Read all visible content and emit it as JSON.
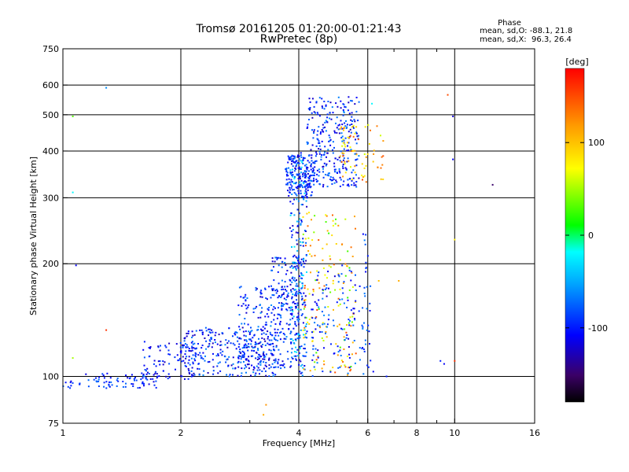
{
  "chart_data": {
    "type": "scatter",
    "title": "Tromsø 20161205 01:20:00-01:21:43",
    "subtitle": "RwPretec (8p)",
    "xlabel": "Frequency [MHz]",
    "ylabel": "Stationary phase Virtual Height [km]",
    "x_scale": "log",
    "y_scale": "log",
    "xlim": [
      1,
      16
    ],
    "ylim": [
      75,
      750
    ],
    "x_ticks": [
      1,
      2,
      4,
      6,
      8,
      10,
      16
    ],
    "x_ticks_minor": [
      3,
      5,
      7,
      9
    ],
    "y_ticks": [
      75,
      100,
      200,
      300,
      400,
      500,
      600,
      750
    ],
    "grid": true,
    "legend": {
      "heading": "Phase",
      "line_o": "mean, sd,O: -88.1, 21.8",
      "line_x": "mean, sd,X:  96.3, 26.4"
    },
    "colorbar": {
      "label": "[deg]",
      "ticks": [
        100,
        0,
        -100
      ],
      "range": [
        -180,
        180
      ]
    },
    "clusters": [
      {
        "f": [
          0.98,
          1.06
        ],
        "h": [
          92,
          98
        ],
        "phase": [
          -120,
          -70
        ],
        "n": 10
      },
      {
        "f": [
          1.1,
          1.75
        ],
        "h": [
          93,
          102
        ],
        "phase": [
          -120,
          -70
        ],
        "n": 70
      },
      {
        "f": [
          1.6,
          2.2
        ],
        "h": [
          98,
          125
        ],
        "phase": [
          -130,
          -70
        ],
        "n": 90
      },
      {
        "f": [
          2.0,
          3.6
        ],
        "h": [
          100,
          135
        ],
        "phase": [
          -130,
          -60
        ],
        "n": 300
      },
      {
        "f": [
          2.8,
          4.0
        ],
        "h": [
          105,
          175
        ],
        "phase": [
          -130,
          -60
        ],
        "n": 260
      },
      {
        "f": [
          3.4,
          4.1
        ],
        "h": [
          150,
          210
        ],
        "phase": [
          -130,
          -60
        ],
        "n": 90
      },
      {
        "f": [
          3.8,
          4.2
        ],
        "h": [
          100,
          400
        ],
        "phase": [
          -130,
          -20
        ],
        "n": 240
      },
      {
        "f": [
          3.7,
          4.4
        ],
        "h": [
          300,
          390
        ],
        "phase": [
          -120,
          -70
        ],
        "n": 160
      },
      {
        "f": [
          4.2,
          5.7
        ],
        "h": [
          320,
          560
        ],
        "phase": [
          -130,
          -60
        ],
        "n": 300
      },
      {
        "f": [
          4.1,
          5.6
        ],
        "h": [
          100,
          280
        ],
        "phase": [
          20,
          150
        ],
        "n": 160
      },
      {
        "f": [
          4.3,
          5.6
        ],
        "h": [
          100,
          200
        ],
        "phase": [
          -120,
          -60
        ],
        "n": 110
      },
      {
        "f": [
          5.1,
          6.6
        ],
        "h": [
          330,
          470
        ],
        "phase": [
          60,
          150
        ],
        "n": 70
      },
      {
        "f": [
          5.7,
          6.1
        ],
        "h": [
          100,
          250
        ],
        "phase": [
          -110,
          -60
        ],
        "n": 40
      }
    ],
    "outliers": [
      {
        "f": 1.29,
        "h": 590,
        "phase": -60
      },
      {
        "f": 1.06,
        "h": 495,
        "phase": 30
      },
      {
        "f": 1.06,
        "h": 310,
        "phase": -20
      },
      {
        "f": 1.08,
        "h": 198,
        "phase": -110
      },
      {
        "f": 1.29,
        "h": 133,
        "phase": 160
      },
      {
        "f": 1.06,
        "h": 112,
        "phase": 50
      },
      {
        "f": 3.3,
        "h": 84,
        "phase": 120
      },
      {
        "f": 3.25,
        "h": 79,
        "phase": 110
      },
      {
        "f": 6.15,
        "h": 535,
        "phase": -20
      },
      {
        "f": 6.4,
        "h": 180,
        "phase": 100
      },
      {
        "f": 7.2,
        "h": 180,
        "phase": 110
      },
      {
        "f": 6.2,
        "h": 103,
        "phase": -110
      },
      {
        "f": 6.7,
        "h": 100,
        "phase": -100
      },
      {
        "f": 9.6,
        "h": 565,
        "phase": 150
      },
      {
        "f": 9.9,
        "h": 495,
        "phase": -120
      },
      {
        "f": 9.9,
        "h": 380,
        "phase": -110
      },
      {
        "f": 10.0,
        "h": 232,
        "phase": 80
      },
      {
        "f": 12.5,
        "h": 325,
        "phase": -150
      },
      {
        "f": 9.2,
        "h": 110,
        "phase": -100
      },
      {
        "f": 9.4,
        "h": 108,
        "phase": -110
      },
      {
        "f": 10.0,
        "h": 110,
        "phase": 160
      }
    ]
  }
}
